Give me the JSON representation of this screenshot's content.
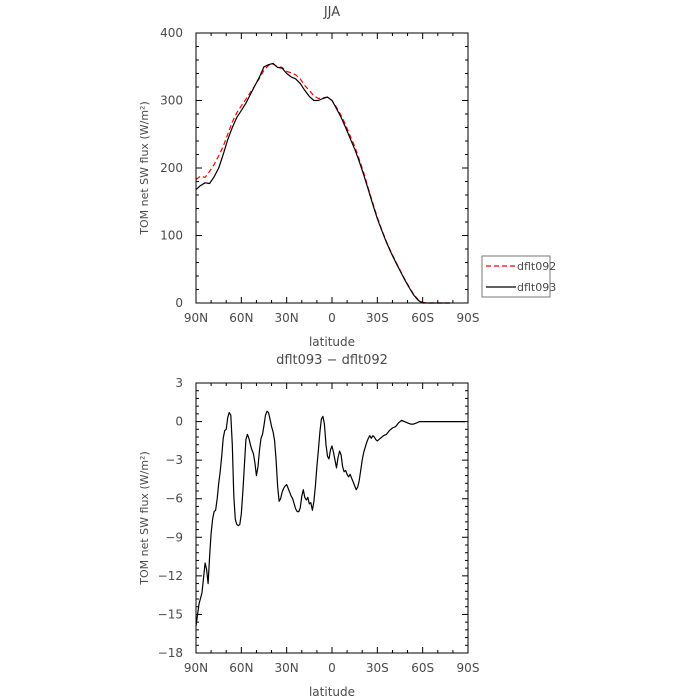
{
  "chart_data": [
    {
      "type": "line",
      "title": "JJA",
      "xlabel": "latitude",
      "ylabel": "TOM net SW flux (W/m²)",
      "xlim": [
        90,
        -90
      ],
      "ylim": [
        0,
        400
      ],
      "xticks": [
        90,
        60,
        30,
        0,
        -30,
        -60,
        -90
      ],
      "xticklabels": [
        "90N",
        "60N",
        "30N",
        "0",
        "30S",
        "60S",
        "90S"
      ],
      "yticks": [
        0,
        100,
        200,
        300,
        400
      ],
      "yticklabels": [
        "0",
        "100",
        "200",
        "300",
        "400"
      ],
      "legend_position": "right",
      "series": [
        {
          "name": "dflt092",
          "color": "#ff0000",
          "dash": "dashed",
          "x": [
            90,
            87,
            84,
            81,
            78,
            75,
            72,
            69,
            66,
            63,
            60,
            57,
            54,
            51,
            48,
            45,
            42,
            39,
            36,
            33,
            30,
            27,
            24,
            21,
            18,
            15,
            12,
            9,
            6,
            3,
            0,
            -3,
            -6,
            -9,
            -12,
            -15,
            -18,
            -21,
            -24,
            -27,
            -30,
            -33,
            -36,
            -39,
            -42,
            -45,
            -48,
            -51,
            -54,
            -57,
            -60,
            -63,
            -66,
            -69,
            -72,
            -75,
            -78
          ],
          "y": [
            183,
            188,
            186,
            195,
            205,
            218,
            232,
            250,
            268,
            282,
            292,
            302,
            312,
            322,
            333,
            345,
            352,
            354,
            350,
            349,
            343,
            341,
            338,
            332,
            322,
            315,
            307,
            303,
            304,
            305,
            300,
            290,
            278,
            264,
            248,
            232,
            213,
            193,
            170,
            148,
            127,
            108,
            91,
            76,
            62,
            49,
            36,
            24,
            13,
            5,
            1,
            0,
            0,
            0,
            0,
            0,
            0
          ]
        },
        {
          "name": "dflt093",
          "color": "#000000",
          "dash": "solid",
          "x": [
            90,
            87,
            84,
            81,
            78,
            75,
            72,
            69,
            66,
            63,
            60,
            57,
            54,
            51,
            48,
            45,
            42,
            39,
            36,
            33,
            30,
            27,
            24,
            21,
            18,
            15,
            12,
            9,
            6,
            3,
            0,
            -3,
            -6,
            -9,
            -12,
            -15,
            -18,
            -21,
            -24,
            -27,
            -30,
            -33,
            -36,
            -39,
            -42,
            -45,
            -48,
            -51,
            -54,
            -57,
            -60,
            -63,
            -66,
            -69,
            -72,
            -75,
            -78
          ],
          "y": [
            168,
            174,
            178,
            177,
            187,
            200,
            220,
            242,
            260,
            275,
            285,
            296,
            309,
            322,
            335,
            350,
            353,
            355,
            349,
            348,
            340,
            335,
            332,
            325,
            315,
            306,
            300,
            300,
            303,
            305,
            300,
            288,
            275,
            260,
            244,
            228,
            210,
            190,
            168,
            146,
            125,
            107,
            90,
            75,
            61,
            48,
            35,
            23,
            12,
            4,
            0,
            0,
            0,
            0,
            0,
            0,
            0
          ]
        }
      ]
    },
    {
      "type": "line",
      "title": "dflt093 − dflt092",
      "xlabel": "latitude",
      "ylabel": "TOM net SW flux (W/m²)",
      "xlim": [
        90,
        -90
      ],
      "ylim": [
        -18,
        3
      ],
      "xticks": [
        90,
        60,
        30,
        0,
        -30,
        -60,
        -90
      ],
      "xticklabels": [
        "90N",
        "60N",
        "30N",
        "0",
        "30S",
        "60S",
        "90S"
      ],
      "yticks": [
        -18,
        -15,
        -12,
        -9,
        -6,
        -3,
        0,
        3
      ],
      "yticklabels": [
        "−18",
        "−15",
        "−12",
        "−9",
        "−6",
        "−3",
        "0",
        "3"
      ],
      "series": [
        {
          "color": "#000000",
          "dash": "solid",
          "x": [
            90,
            88,
            86,
            84,
            83,
            82,
            81,
            80,
            79,
            78,
            77,
            76,
            75,
            74,
            73,
            72,
            71,
            70,
            69,
            68,
            67,
            66,
            65,
            64,
            63,
            62,
            61,
            60,
            59,
            58,
            57,
            56,
            55,
            54,
            53,
            52,
            51,
            50,
            49,
            48,
            47,
            46,
            45,
            44,
            43,
            42,
            41,
            40,
            39,
            38,
            37,
            36,
            35,
            34,
            33,
            32,
            31,
            30,
            29,
            28,
            27,
            26,
            25,
            24,
            23,
            22,
            21,
            20,
            19,
            18,
            17,
            16,
            15,
            14,
            13,
            12,
            11,
            10,
            9,
            8,
            7,
            6,
            5,
            4,
            3,
            2,
            1,
            0,
            -1,
            -2,
            -3,
            -4,
            -5,
            -6,
            -7,
            -8,
            -9,
            -10,
            -11,
            -12,
            -13,
            -14,
            -15,
            -16,
            -17,
            -18,
            -19,
            -20,
            -21,
            -22,
            -23,
            -24,
            -25,
            -26,
            -27,
            -28,
            -29,
            -30,
            -32,
            -34,
            -36,
            -38,
            -40,
            -42,
            -44,
            -46,
            -48,
            -50,
            -52,
            -54,
            -56,
            -58,
            -60,
            -62,
            -64,
            -66,
            -68,
            -70,
            -72,
            -74,
            -76,
            -78,
            -80,
            -82,
            -84,
            -86,
            -88
          ],
          "y": [
            -15.9,
            -14.2,
            -13.3,
            -11.0,
            -11.5,
            -12.6,
            -10.5,
            -8.7,
            -7.6,
            -7.0,
            -6.9,
            -6.0,
            -4.8,
            -3.9,
            -2.7,
            -1.3,
            -0.7,
            -0.6,
            0.3,
            0.7,
            0.5,
            -1.8,
            -5.8,
            -7.6,
            -8.0,
            -8.1,
            -8.0,
            -7.2,
            -5.5,
            -3.4,
            -1.4,
            -1.0,
            -1.3,
            -1.8,
            -2.2,
            -2.5,
            -3.2,
            -4.2,
            -3.5,
            -2.2,
            -1.3,
            -1.0,
            -0.3,
            0.5,
            0.8,
            0.7,
            0.2,
            -0.4,
            -0.8,
            -1.5,
            -3.0,
            -5.0,
            -6.2,
            -6.0,
            -5.5,
            -5.2,
            -5.0,
            -4.9,
            -5.2,
            -5.5,
            -5.8,
            -6.0,
            -6.4,
            -6.8,
            -7.0,
            -7.0,
            -6.7,
            -5.8,
            -5.3,
            -5.9,
            -6.1,
            -5.9,
            -6.4,
            -6.3,
            -6.9,
            -6.2,
            -5.0,
            -3.5,
            -2.2,
            -0.8,
            0.2,
            0.4,
            -0.2,
            -1.8,
            -2.7,
            -2.9,
            -2.2,
            -1.9,
            -2.4,
            -3.0,
            -3.6,
            -2.8,
            -2.3,
            -2.6,
            -3.5,
            -3.9,
            -3.8,
            -4.1,
            -4.3,
            -4.1,
            -4.4,
            -4.7,
            -5.0,
            -5.3,
            -5.1,
            -4.6,
            -3.8,
            -3.0,
            -2.4,
            -2.0,
            -1.6,
            -1.3,
            -1.1,
            -1.3,
            -1.1,
            -1.2,
            -1.4,
            -1.5,
            -1.3,
            -1.1,
            -1.0,
            -0.7,
            -0.5,
            -0.4,
            -0.1,
            0.1,
            0.0,
            -0.1,
            -0.2,
            -0.2,
            -0.1,
            0.0,
            0.0,
            0.0,
            0.0,
            0.0,
            0.0,
            0.0,
            0.0,
            0.0,
            0.0,
            0.0,
            0.0,
            0.0,
            0.0,
            0.0,
            0.0
          ]
        }
      ]
    }
  ]
}
